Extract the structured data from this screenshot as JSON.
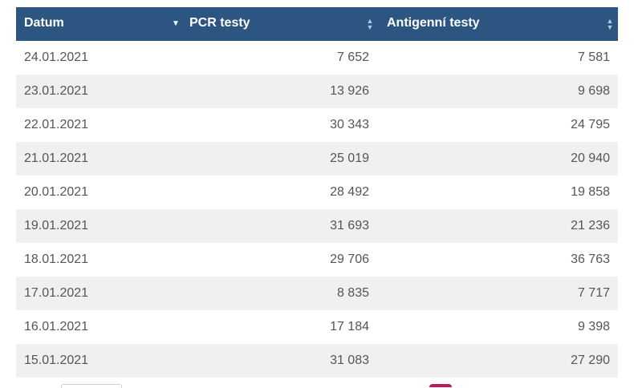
{
  "table": {
    "headers": {
      "date": "Datum",
      "pcr": "PCR testy",
      "antigen": "Antigenní testy"
    },
    "sort": {
      "column": "date",
      "direction": "descending"
    },
    "rows": [
      {
        "date": "24.01.2021",
        "pcr": "7 652",
        "antigen": "7 581"
      },
      {
        "date": "23.01.2021",
        "pcr": "13 926",
        "antigen": "9 698"
      },
      {
        "date": "22.01.2021",
        "pcr": "30 343",
        "antigen": "24 795"
      },
      {
        "date": "21.01.2021",
        "pcr": "25 019",
        "antigen": "20 940"
      },
      {
        "date": "20.01.2021",
        "pcr": "28 492",
        "antigen": "19 858"
      },
      {
        "date": "19.01.2021",
        "pcr": "31 693",
        "antigen": "21 236"
      },
      {
        "date": "18.01.2021",
        "pcr": "29 706",
        "antigen": "36 763"
      },
      {
        "date": "17.01.2021",
        "pcr": "8 835",
        "antigen": "7 717"
      },
      {
        "date": "16.01.2021",
        "pcr": "17 184",
        "antigen": "9 398"
      },
      {
        "date": "15.01.2021",
        "pcr": "31 083",
        "antigen": "27 290"
      }
    ]
  },
  "colors": {
    "header_bg": "#2c5581",
    "row_stripe": "#f0f0f0",
    "accent_badge": "#c0185a"
  },
  "icons": {
    "date_sort": "sort-desc-icon",
    "pcr_sort": "sort-both-icon",
    "antigen_sort": "sort-both-icon"
  }
}
